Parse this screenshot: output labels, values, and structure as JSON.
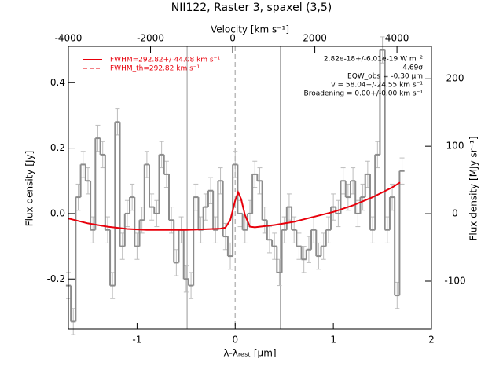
{
  "chart_data": {
    "type": "line",
    "title": "NII122, Raster 3, spaxel (3,5)",
    "x_label": "λ-λᵣₑₛₜ [μm]",
    "y_label": "Flux density [Jy]",
    "x2_label": "Velocity [km s⁻¹]",
    "y2_label": "Flux density [MJy sr⁻¹]",
    "xlim": [
      -1.7,
      2
    ],
    "xticks": [
      -1,
      0,
      1,
      2
    ],
    "ylim": [
      -0.353,
      0.511
    ],
    "yticks": [
      -0.2,
      {
        "value": 0,
        "label": "0.0"
      },
      0.2,
      0.4
    ],
    "x2lim": [
      -4000,
      4840
    ],
    "x2ticks": [
      -4000,
      -2000,
      0,
      2000,
      4000
    ],
    "y2lim": [
      -171,
      248
    ],
    "y2ticks": [
      -100,
      0,
      100,
      200
    ],
    "step_width": 0.05,
    "x": [
      -1.7,
      -1.65,
      -1.6,
      -1.55,
      -1.5,
      -1.45,
      -1.4,
      -1.35,
      -1.3,
      -1.25,
      -1.2,
      -1.15,
      -1.1,
      -1.05,
      -1.0,
      -0.95,
      -0.9,
      -0.85,
      -0.8,
      -0.75,
      -0.7,
      -0.65,
      -0.6,
      -0.55,
      -0.5,
      -0.45,
      -0.4,
      -0.35,
      -0.3,
      -0.25,
      -0.2,
      -0.15,
      -0.1,
      -0.05,
      0,
      0.05,
      0.1,
      0.15,
      0.2,
      0.25,
      0.3,
      0.35,
      0.4,
      0.45,
      0.5,
      0.55,
      0.6,
      0.65,
      0.7,
      0.75,
      0.8,
      0.85,
      0.9,
      0.95,
      1.0,
      1.05,
      1.1,
      1.15,
      1.2,
      1.25,
      1.3,
      1.35,
      1.4,
      1.45,
      1.5,
      1.55,
      1.6,
      1.65,
      1.7
    ],
    "series": [
      {
        "name": "spectrum",
        "color": "#8c8c8c",
        "values": [
          -0.22,
          -0.33,
          0.05,
          0.15,
          0.1,
          -0.05,
          0.23,
          0.18,
          -0.05,
          -0.22,
          0.28,
          -0.1,
          0.0,
          0.05,
          -0.1,
          -0.02,
          0.15,
          0.02,
          0.0,
          0.18,
          0.12,
          -0.02,
          -0.15,
          -0.05,
          -0.2,
          -0.22,
          0.05,
          -0.05,
          0.02,
          0.07,
          -0.05,
          0.1,
          -0.07,
          -0.13,
          0.15,
          0.0,
          -0.05,
          0.0,
          0.12,
          0.1,
          -0.02,
          -0.08,
          -0.1,
          -0.18,
          -0.05,
          0.02,
          -0.05,
          -0.1,
          -0.14,
          -0.11,
          -0.05,
          -0.13,
          -0.1,
          -0.05,
          0.02,
          0.0,
          0.1,
          0.05,
          0.1,
          0.0,
          0.05,
          0.12,
          -0.05,
          0.18,
          0.5,
          -0.05,
          0.05,
          -0.25,
          0.13
        ]
      }
    ],
    "error": 0.04,
    "error_color": "#bdbdbd",
    "fit": {
      "name": "FWHM=292.82+/-44.08 km s⁻¹",
      "color": "#e8000b",
      "x": [
        -1.7,
        -1.5,
        -1.3,
        -1.1,
        -0.9,
        -0.7,
        -0.5,
        -0.3,
        -0.15,
        -0.1,
        -0.05,
        0,
        0.03,
        0.06,
        0.1,
        0.15,
        0.2,
        0.4,
        0.6,
        0.8,
        1.0,
        1.2,
        1.4,
        1.6,
        1.68
      ],
      "values": [
        -0.015,
        -0.03,
        -0.04,
        -0.047,
        -0.05,
        -0.05,
        -0.05,
        -0.048,
        -0.046,
        -0.043,
        -0.02,
        0.04,
        0.065,
        0.045,
        -0.005,
        -0.04,
        -0.042,
        -0.035,
        -0.025,
        -0.01,
        0.005,
        0.025,
        0.05,
        0.08,
        0.095
      ]
    },
    "fit_th_name": "FWHM_th=292.82 km s⁻¹",
    "vlines": [
      -0.49,
      0.46
    ],
    "rest_line": 0,
    "annotations": [
      "2.82e-18+/-6.01e-19 W m⁻²",
      "4.69σ",
      "EQW_obs = -0.30 μm",
      "v = 58.04+/-24.55 km s⁻¹",
      "Broadening = 0.00+/-0.00 km s⁻¹"
    ]
  }
}
